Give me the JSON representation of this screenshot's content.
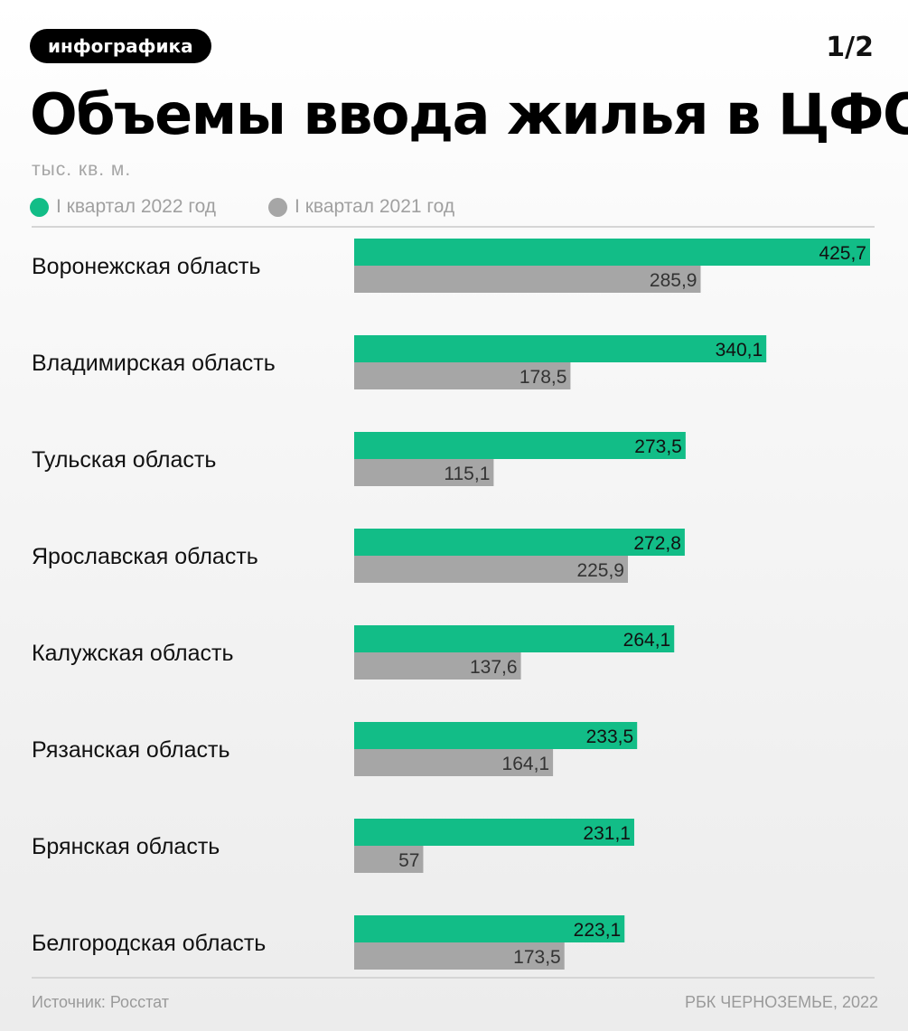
{
  "header": {
    "badge": "инфографика",
    "page": "1/2",
    "title": "Объемы ввода жилья в ЦФО",
    "units": "тыс. кв. м."
  },
  "colors": {
    "series_2022": "#12bd87",
    "series_2021": "#a6a6a6"
  },
  "chart_data": {
    "type": "bar",
    "orientation": "horizontal",
    "categories": [
      "Воронежская область",
      "Владимирская область",
      "Тульская область",
      "Ярославская область",
      "Калужская область",
      "Рязанская область",
      "Брянская область",
      "Белгородская область"
    ],
    "series": [
      {
        "name": "I квартал 2022 год",
        "values": [
          425.7,
          340.1,
          273.5,
          272.8,
          264.1,
          233.5,
          231.1,
          223.1
        ],
        "labels": [
          "425,7",
          "340,1",
          "273,5",
          "272,8",
          "264,1",
          "233,5",
          "231,1",
          "223,1"
        ]
      },
      {
        "name": "I квартал 2021 год",
        "values": [
          285.9,
          178.5,
          115.1,
          225.9,
          137.6,
          164.1,
          57,
          173.5
        ],
        "labels": [
          "285,9",
          "178,5",
          "115,1",
          "225,9",
          "137,6",
          "164,1",
          "57",
          "173,5"
        ]
      }
    ],
    "title": "Объемы ввода жилья в ЦФО",
    "xlim": [
      0,
      425.7
    ],
    "legend": "top-left",
    "grid": false
  },
  "footer": {
    "source": "Источник: Росстат",
    "credit": "РБК ЧЕРНОЗЕМЬЕ, 2022"
  }
}
